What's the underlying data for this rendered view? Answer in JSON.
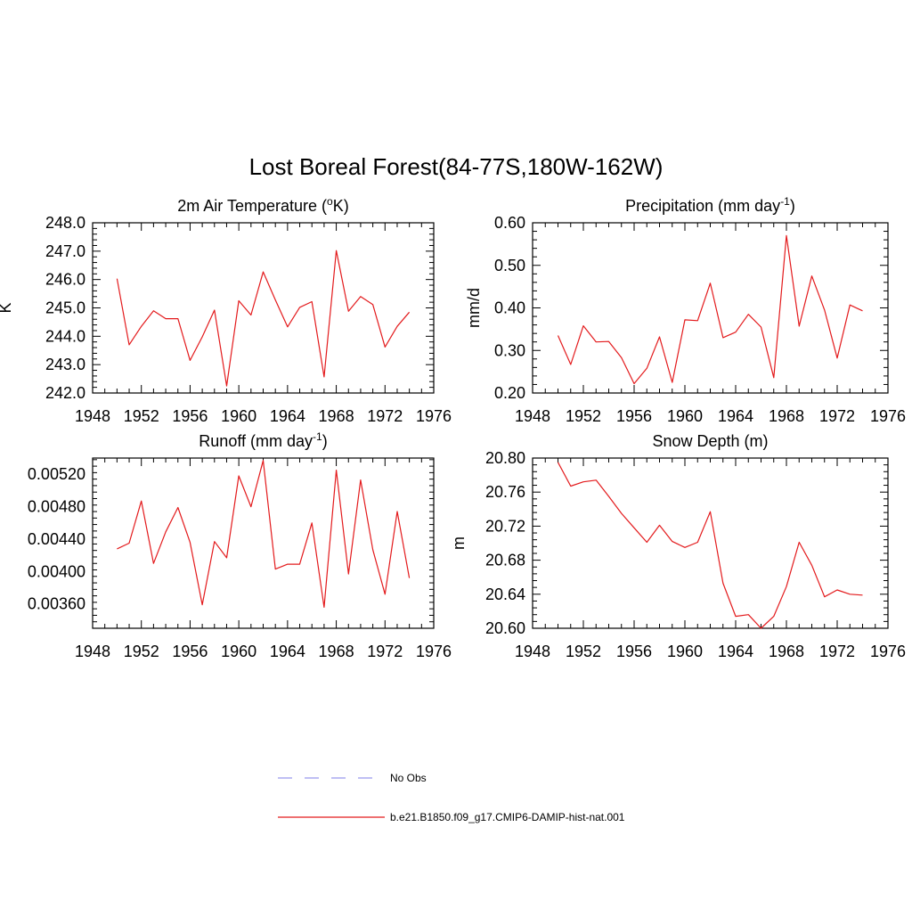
{
  "figure_title": "Lost Boreal Forest(84-77S,180W-162W)",
  "legend": {
    "entries": [
      {
        "label": "No Obs",
        "color": "#9999ee",
        "style": "dashed"
      },
      {
        "label": "b.e21.B1850.f09_g17.CMIP6-DAMIP-hist-nat.001",
        "color": "#e31a1c",
        "style": "solid"
      }
    ]
  },
  "chart_data": [
    {
      "type": "line",
      "title": "2m Air Temperature (",
      "title_sup": "o",
      "title_after": "K)",
      "ylabel": "K",
      "xlim": [
        1948,
        1976
      ],
      "ylim": [
        242.0,
        248.0
      ],
      "xticks": [
        1948,
        1952,
        1956,
        1960,
        1964,
        1968,
        1972,
        1976
      ],
      "yticks": [
        242.0,
        243.0,
        244.0,
        245.0,
        246.0,
        247.0,
        248.0
      ],
      "ytick_labels": [
        "242.0",
        "243.0",
        "244.0",
        "245.0",
        "246.0",
        "247.0",
        "248.0"
      ],
      "series": [
        {
          "color": "#e31a1c",
          "x": [
            1950,
            1951,
            1952,
            1953,
            1954,
            1955,
            1956,
            1957,
            1958,
            1959,
            1960,
            1961,
            1962,
            1963,
            1964,
            1965,
            1966,
            1967,
            1968,
            1969,
            1970,
            1971,
            1972,
            1973,
            1974
          ],
          "values": [
            246.03,
            243.7,
            244.35,
            244.9,
            244.62,
            244.62,
            243.15,
            243.98,
            244.92,
            242.25,
            245.25,
            244.75,
            246.27,
            245.28,
            244.33,
            245.02,
            245.22,
            242.57,
            247.02,
            244.88,
            245.4,
            245.12,
            243.62,
            244.35,
            244.85
          ]
        }
      ]
    },
    {
      "type": "line",
      "title": "Precipitation (mm day",
      "title_sup": "-1",
      "title_after": ")",
      "ylabel": "mm/d",
      "xlim": [
        1948,
        1976
      ],
      "ylim": [
        0.2,
        0.6
      ],
      "xticks": [
        1948,
        1952,
        1956,
        1960,
        1964,
        1968,
        1972,
        1976
      ],
      "yticks": [
        0.2,
        0.3,
        0.4,
        0.5,
        0.6
      ],
      "ytick_labels": [
        "0.20",
        "0.30",
        "0.40",
        "0.50",
        "0.60"
      ],
      "series": [
        {
          "color": "#e31a1c",
          "x": [
            1950,
            1951,
            1952,
            1953,
            1954,
            1955,
            1956,
            1957,
            1958,
            1959,
            1960,
            1961,
            1962,
            1963,
            1964,
            1965,
            1966,
            1967,
            1968,
            1969,
            1970,
            1971,
            1972,
            1973,
            1974
          ],
          "values": [
            0.335,
            0.267,
            0.358,
            0.32,
            0.321,
            0.283,
            0.222,
            0.258,
            0.332,
            0.225,
            0.372,
            0.37,
            0.458,
            0.33,
            0.343,
            0.385,
            0.355,
            0.236,
            0.57,
            0.357,
            0.475,
            0.395,
            0.282,
            0.407,
            0.393
          ]
        }
      ]
    },
    {
      "type": "line",
      "title": "Runoff (mm day",
      "title_sup": "-1",
      "title_after": ")",
      "ylabel": "",
      "xlim": [
        1948,
        1976
      ],
      "ylim": [
        0.0033,
        0.0054
      ],
      "xticks": [
        1948,
        1952,
        1956,
        1960,
        1964,
        1968,
        1972,
        1976
      ],
      "yticks": [
        0.0036,
        0.004,
        0.0044,
        0.0048,
        0.0052
      ],
      "ytick_labels": [
        "0.00360",
        "0.00400",
        "0.00440",
        "0.00480",
        "0.00520"
      ],
      "series": [
        {
          "color": "#e31a1c",
          "x": [
            1950,
            1951,
            1952,
            1953,
            1954,
            1955,
            1956,
            1957,
            1958,
            1959,
            1960,
            1961,
            1962,
            1963,
            1964,
            1965,
            1966,
            1967,
            1968,
            1969,
            1970,
            1971,
            1972,
            1973,
            1974
          ],
          "values": [
            0.00428,
            0.00435,
            0.00487,
            0.0041,
            0.00449,
            0.00479,
            0.00436,
            0.00359,
            0.00437,
            0.00417,
            0.00518,
            0.0048,
            0.00537,
            0.00403,
            0.00409,
            0.00409,
            0.0046,
            0.00356,
            0.00525,
            0.00397,
            0.00513,
            0.00427,
            0.00372,
            0.00474,
            0.00392
          ]
        }
      ]
    },
    {
      "type": "line",
      "title": "Snow Depth (m)",
      "title_sup": "",
      "title_after": "",
      "ylabel": "m",
      "xlim": [
        1948,
        1976
      ],
      "ylim": [
        20.6,
        20.8
      ],
      "xticks": [
        1948,
        1952,
        1956,
        1960,
        1964,
        1968,
        1972,
        1976
      ],
      "yticks": [
        20.6,
        20.64,
        20.68,
        20.72,
        20.76,
        20.8
      ],
      "ytick_labels": [
        "20.60",
        "20.64",
        "20.68",
        "20.72",
        "20.76",
        "20.80"
      ],
      "series": [
        {
          "color": "#e31a1c",
          "x": [
            1950,
            1951,
            1952,
            1953,
            1954,
            1955,
            1956,
            1957,
            1958,
            1959,
            1960,
            1961,
            1962,
            1963,
            1964,
            1965,
            1966,
            1967,
            1968,
            1969,
            1970,
            1971,
            1972,
            1973,
            1974
          ],
          "values": [
            20.795,
            20.767,
            20.772,
            20.774,
            20.755,
            20.735,
            20.718,
            20.701,
            20.721,
            20.702,
            20.695,
            20.701,
            20.737,
            20.653,
            20.614,
            20.616,
            20.6,
            20.614,
            20.649,
            20.701,
            20.674,
            20.637,
            20.645,
            20.64,
            20.639
          ]
        }
      ]
    }
  ]
}
